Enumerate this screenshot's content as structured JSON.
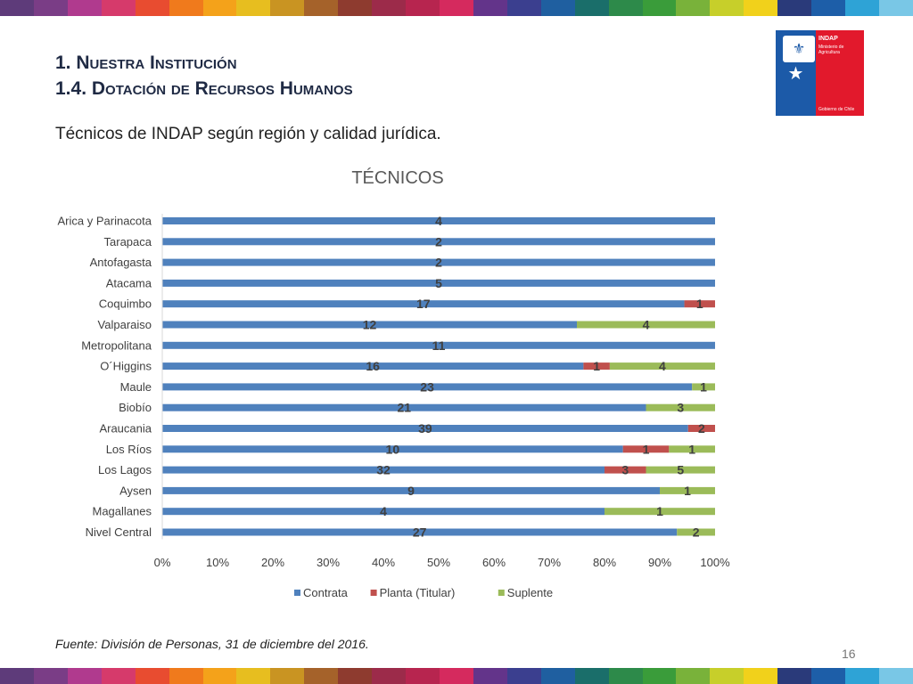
{
  "header": {
    "line1_num": "1. ",
    "line1_text": "Nuestra Institución",
    "line2_num": "1.4. ",
    "line2_text": "Dotación de Recursos Humanos"
  },
  "subtitle": "Técnicos de INDAP según región y calidad jurídica.",
  "logo": {
    "org": "INDAP",
    "ministry": "Ministerio de Agricultura",
    "gov": "Gobierno de Chile",
    "icon": "crest-icon"
  },
  "footer": "Fuente: División de Personas, 31 de diciembre del 2016.",
  "page_number": "16",
  "colors": {
    "contrata": "#4f81bd",
    "planta": "#c0504d",
    "suplente": "#9bbb59",
    "stripe": [
      "#5e3b7a",
      "#7a3d86",
      "#b03a8e",
      "#d63a6b",
      "#e84c30",
      "#f07a1c",
      "#f4a21a",
      "#e7be1f",
      "#c99422",
      "#a5622a",
      "#8e3b2f",
      "#9c2b4a",
      "#b7254f",
      "#d52a5e",
      "#63348a",
      "#3b3f8f",
      "#1f5fa0",
      "#1a6e6a",
      "#2d8a4a",
      "#3a9c3a",
      "#79b23a",
      "#c7cf2a",
      "#f1d11b",
      "#2a3a7a",
      "#1d5ea8",
      "#2ea3d6",
      "#79c7e6"
    ]
  },
  "chart_data": {
    "type": "bar",
    "orientation": "horizontal",
    "stacking": "percent",
    "title": "TÉCNICOS",
    "categories": [
      "Arica y Parinacota",
      "Tarapaca",
      "Antofagasta",
      "Atacama",
      "Coquimbo",
      "Valparaiso",
      "Metropolitana",
      "O´Higgins",
      "Maule",
      "Biobío",
      "Araucania",
      "Los Ríos",
      "Los Lagos",
      "Aysen",
      "Magallanes",
      "Nivel Central"
    ],
    "series": [
      {
        "name": "Contrata",
        "values": [
          4,
          2,
          2,
          5,
          17,
          12,
          11,
          16,
          23,
          21,
          39,
          10,
          32,
          9,
          4,
          27
        ]
      },
      {
        "name": "Planta (Titular)",
        "values": [
          0,
          0,
          0,
          0,
          1,
          0,
          0,
          1,
          0,
          0,
          2,
          1,
          3,
          0,
          0,
          0
        ]
      },
      {
        "name": "Suplente",
        "values": [
          0,
          0,
          0,
          0,
          0,
          4,
          0,
          4,
          1,
          3,
          0,
          1,
          5,
          1,
          1,
          2
        ]
      }
    ],
    "x_ticks": [
      "0%",
      "10%",
      "20%",
      "30%",
      "40%",
      "50%",
      "60%",
      "70%",
      "80%",
      "90%",
      "100%"
    ],
    "xlim": [
      0,
      100
    ],
    "legend_position": "bottom",
    "grid": false
  }
}
